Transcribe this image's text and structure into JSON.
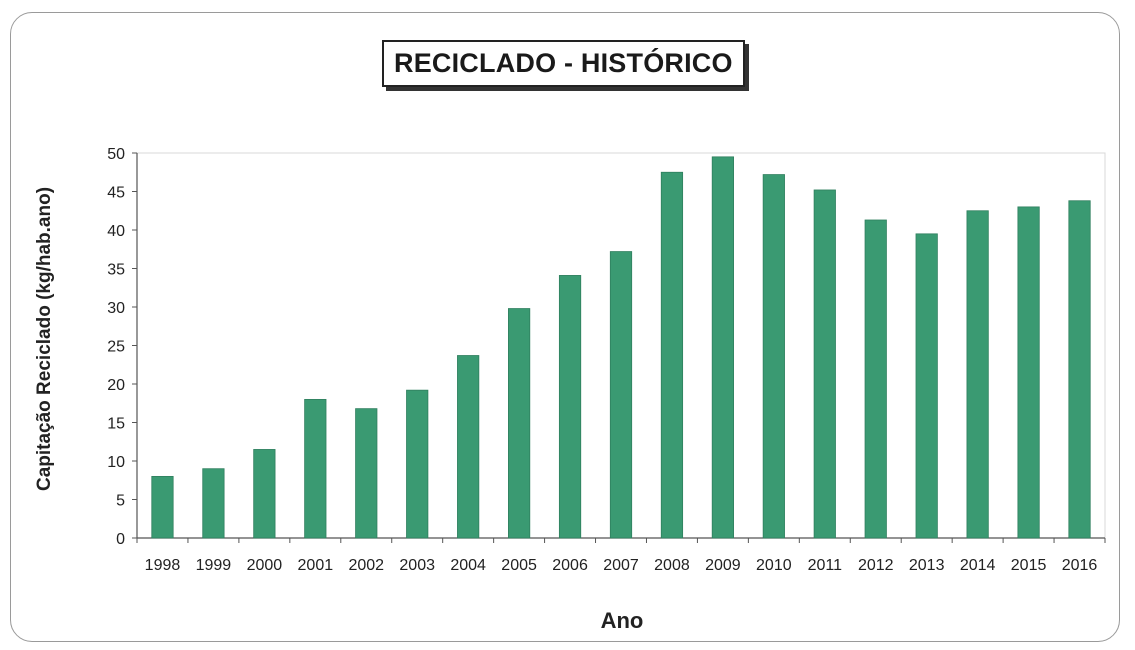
{
  "chart_data": {
    "type": "bar",
    "title": "RECICLADO - HISTÓRICO",
    "xlabel": "Ano",
    "ylabel": "Capitação Reciclado (kg/hab.ano)",
    "categories": [
      "1998",
      "1999",
      "2000",
      "2001",
      "2002",
      "2003",
      "2004",
      "2005",
      "2006",
      "2007",
      "2008",
      "2009",
      "2010",
      "2011",
      "2012",
      "2013",
      "2014",
      "2015",
      "2016"
    ],
    "values": [
      8,
      9,
      11.5,
      18,
      16.8,
      19.2,
      23.7,
      29.8,
      34.1,
      37.2,
      47.5,
      49.5,
      47.2,
      45.2,
      41.3,
      39.5,
      42.5,
      43,
      43.8
    ],
    "ylim": [
      0,
      50
    ],
    "yticks": [
      "0",
      "5",
      "10",
      "15",
      "20",
      "25",
      "30",
      "35",
      "40",
      "45",
      "50"
    ],
    "grid": false,
    "legend": "none",
    "colors": {
      "bar": "#3a9a72",
      "bar_edge": "#2f7f5e",
      "axis": "#555555",
      "text": "#222222"
    }
  }
}
